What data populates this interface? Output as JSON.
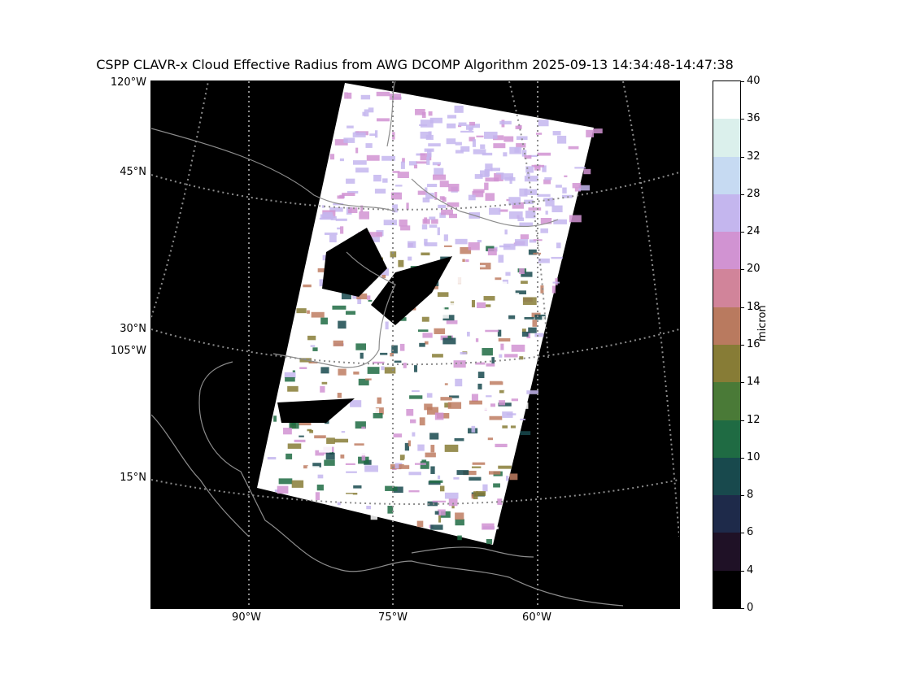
{
  "figure": {
    "title": "CSPP CLAVR-x Cloud Effective Radius from AWG DCOMP Algorithm 2025-09-13 14:34:48-14:47:38"
  },
  "map": {
    "lat_labels": [
      "120°W",
      "45°N",
      "30°N",
      "105°W",
      "15°N"
    ],
    "lon_labels": [
      "90°W",
      "75°W",
      "60°W"
    ],
    "background_color": "#000000",
    "graticule_color": "#8c8c8c",
    "coastline_color": "#8c8c8c",
    "swath_colors": [
      "#ffffff",
      "#c4b6ee",
      "#d193d2",
      "#be7c61",
      "#877c36",
      "#1f6b43",
      "#18494d"
    ]
  },
  "colorbar": {
    "unit": "micron",
    "ticks": [
      "0",
      "4",
      "6",
      "8",
      "10",
      "12",
      "14",
      "16",
      "18",
      "20",
      "24",
      "28",
      "32",
      "36",
      "40"
    ],
    "bins": [
      {
        "from": 36,
        "to": 40,
        "color": "#ffffff"
      },
      {
        "from": 32,
        "to": 36,
        "color": "#dbf0ec"
      },
      {
        "from": 28,
        "to": 32,
        "color": "#c6daf2"
      },
      {
        "from": 24,
        "to": 28,
        "color": "#c4b6ee"
      },
      {
        "from": 20,
        "to": 24,
        "color": "#d193d2"
      },
      {
        "from": 18,
        "to": 20,
        "color": "#d1849a"
      },
      {
        "from": 16,
        "to": 18,
        "color": "#b97a5f"
      },
      {
        "from": 14,
        "to": 16,
        "color": "#877c36"
      },
      {
        "from": 12,
        "to": 14,
        "color": "#4a7a37"
      },
      {
        "from": 10,
        "to": 12,
        "color": "#1f6b43"
      },
      {
        "from": 8,
        "to": 10,
        "color": "#18494d"
      },
      {
        "from": 6,
        "to": 8,
        "color": "#1e2a4a"
      },
      {
        "from": 4,
        "to": 6,
        "color": "#1f1126"
      },
      {
        "from": 0,
        "to": 4,
        "color": "#000000"
      }
    ]
  }
}
